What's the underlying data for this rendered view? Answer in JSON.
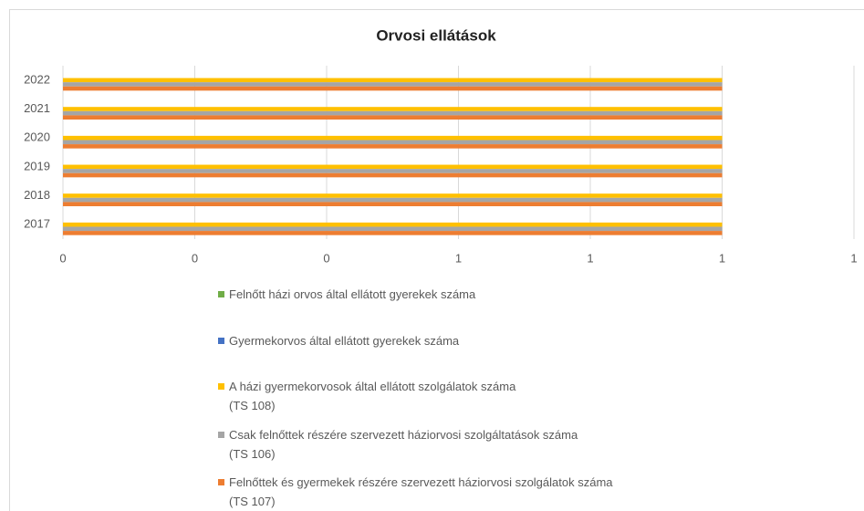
{
  "chart_data": {
    "type": "bar",
    "orientation": "horizontal",
    "title": "Orvosi ellátások",
    "categories": [
      "2017",
      "2018",
      "2019",
      "2020",
      "2021",
      "2022"
    ],
    "series": [
      {
        "name": "Felnőtt házi orvos által ellátott gyerekek száma",
        "color": "#70ad47",
        "values": [
          0,
          0,
          0,
          0,
          0,
          0
        ]
      },
      {
        "name": "Gyermekorvos által ellátott gyerekek száma",
        "color": "#4472c4",
        "values": [
          0,
          0,
          0,
          0,
          0,
          0
        ]
      },
      {
        "name": "A házi gyermekorvosok által ellátott szolgálatok száma\n(TS 108)",
        "color": "#ffc000",
        "values": [
          1,
          1,
          1,
          1,
          1,
          1
        ]
      },
      {
        "name": "Csak felnőttek részére szervezett háziorvosi szolgáltatások száma\n(TS 106)",
        "color": "#a5a5a5",
        "values": [
          1,
          1,
          1,
          1,
          1,
          1
        ]
      },
      {
        "name": "Felnőttek és gyermekek részére szervezett háziorvosi szolgálatok száma\n(TS 107)",
        "color": "#ed7d31",
        "values": [
          1,
          1,
          1,
          1,
          1,
          1
        ]
      }
    ],
    "xlim": [
      0,
      1.2
    ],
    "xticks": [
      0,
      {
        "value": 0.2,
        "label": "0"
      },
      {
        "value": 0.4,
        "label": "0"
      },
      {
        "value": 0.6,
        "label": "1"
      },
      {
        "value": 0.8,
        "label": "1"
      },
      1,
      {
        "value": 1.2,
        "label": "1"
      }
    ],
    "grid": true,
    "legend": "bottom"
  }
}
